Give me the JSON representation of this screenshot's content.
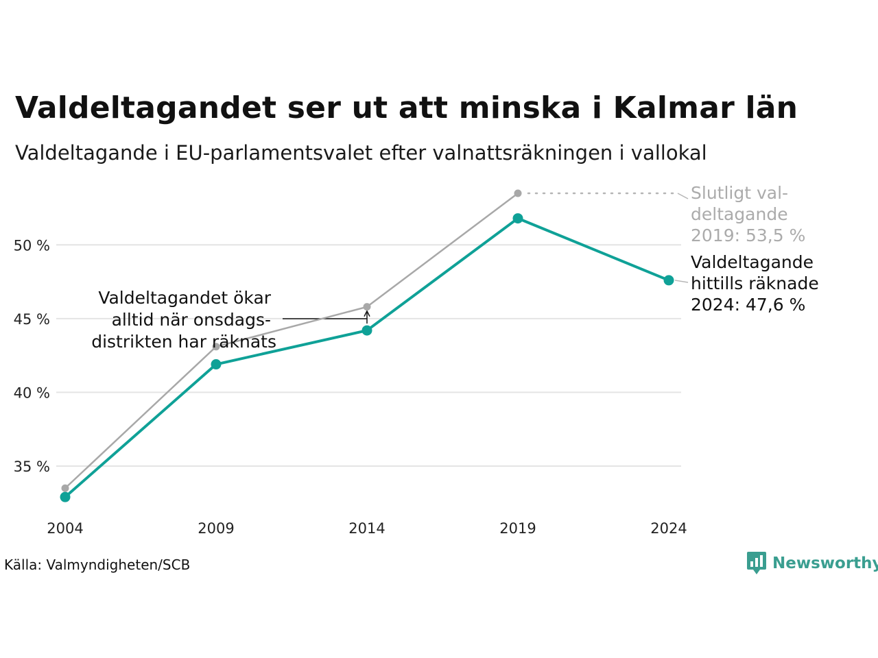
{
  "header": {
    "title": "Valdeltagandet ser ut att minska i Kalmar län",
    "subtitle": "Valdeltagande i EU-parlamentsvalet efter valnattsräkningen i vallokal"
  },
  "chart_data": {
    "type": "line",
    "x": [
      2004,
      2009,
      2014,
      2019,
      2024
    ],
    "x_tick_labels": [
      "2004",
      "2009",
      "2014",
      "2019",
      "2024"
    ],
    "y_ticks": [
      35,
      40,
      45,
      50
    ],
    "y_tick_labels": [
      "35 %",
      "40 %",
      "45 %",
      "50 %"
    ],
    "ylim": [
      32,
      54
    ],
    "grid": true,
    "series": [
      {
        "values": [
          33.5,
          43.1,
          45.8,
          53.5,
          null
        ],
        "color": "#a8a8a8"
      },
      {
        "values": [
          32.9,
          41.9,
          44.2,
          51.8,
          47.6
        ],
        "color": "#0fa197"
      }
    ],
    "annotations": {
      "gray_label": [
        "Slutligt val-",
        "deltagande",
        "2019: 53,5 %"
      ],
      "teal_label": [
        "Valdeltagande",
        "hittills räknade",
        "2024: 47,6 %"
      ],
      "note_label": [
        "Valdeltagandet ökar",
        "alltid när onsdags-",
        "distrikten har räknats"
      ]
    }
  },
  "footer": {
    "source": "Källa: Valmyndigheten/SCB",
    "brand": "Newsworthy",
    "brand_icon": "bar-chart-bubble-icon",
    "brand_color": "#3a9e90"
  }
}
